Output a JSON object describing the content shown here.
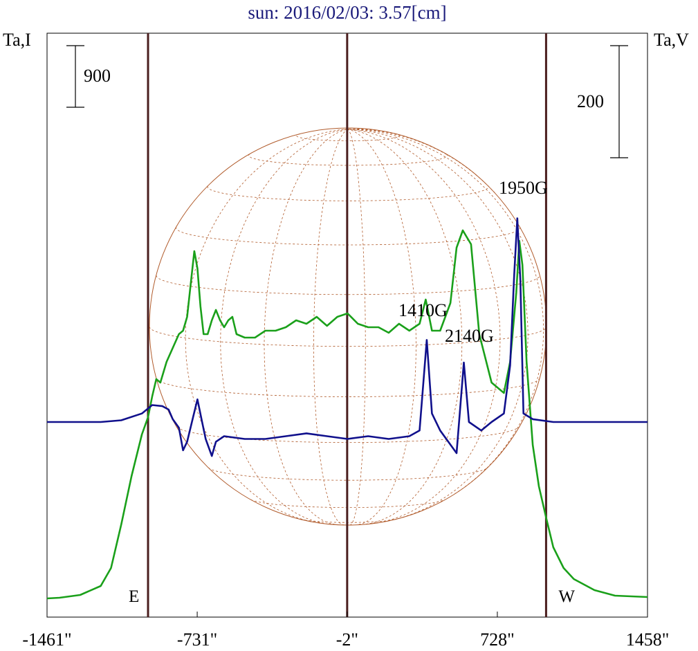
{
  "chart_data": {
    "type": "line",
    "title": "sun: 2016/02/03: 3.57[cm]",
    "left_axis_label": "Ta,I",
    "right_axis_label": "Ta,V",
    "x_unit": "arcsec",
    "x_ticks": [
      -1461,
      -731,
      -2,
      728,
      1458
    ],
    "x_tick_labels": [
      "-1461\"",
      "-731\"",
      "-2\"",
      "728\"",
      "1458\""
    ],
    "xlim": [
      -1461,
      1458
    ],
    "limb_markers": [
      {
        "label": "E",
        "x": -970
      },
      {
        "label": "",
        "x": -2
      },
      {
        "label": "W",
        "x": 965
      }
    ],
    "scale_bars": [
      {
        "axis": "I",
        "label": "900"
      },
      {
        "axis": "V",
        "label": "200"
      }
    ],
    "annotations": [
      {
        "text": "1950G",
        "x": 868
      },
      {
        "text": "1410G",
        "x": 385
      },
      {
        "text": "2140G",
        "x": 620
      }
    ],
    "grid": false,
    "solar_disk_overlay": true,
    "colors": {
      "intensity": "#1aa01a",
      "polarization": "#10108c",
      "markers": "#4a1e1e",
      "disk": "#b05a2a",
      "title": "#1a1a7a"
    },
    "series": [
      {
        "key": "I",
        "axis": "left",
        "points": [
          [
            -1461,
            80
          ],
          [
            -1400,
            90
          ],
          [
            -1300,
            130
          ],
          [
            -1200,
            260
          ],
          [
            -1150,
            520
          ],
          [
            -1100,
            1150
          ],
          [
            -1050,
            1850
          ],
          [
            -1000,
            2450
          ],
          [
            -970,
            2700
          ],
          [
            -950,
            3000
          ],
          [
            -930,
            3250
          ],
          [
            -910,
            3200
          ],
          [
            -880,
            3500
          ],
          [
            -850,
            3700
          ],
          [
            -820,
            3900
          ],
          [
            -800,
            3950
          ],
          [
            -780,
            4150
          ],
          [
            -760,
            4700
          ],
          [
            -745,
            5100
          ],
          [
            -730,
            4850
          ],
          [
            -715,
            4300
          ],
          [
            -700,
            3900
          ],
          [
            -680,
            3900
          ],
          [
            -660,
            4100
          ],
          [
            -640,
            4250
          ],
          [
            -620,
            4100
          ],
          [
            -600,
            4000
          ],
          [
            -580,
            4100
          ],
          [
            -560,
            4150
          ],
          [
            -540,
            3900
          ],
          [
            -500,
            3850
          ],
          [
            -450,
            3850
          ],
          [
            -400,
            3950
          ],
          [
            -350,
            3950
          ],
          [
            -300,
            4000
          ],
          [
            -250,
            4100
          ],
          [
            -200,
            4050
          ],
          [
            -150,
            4150
          ],
          [
            -100,
            4020
          ],
          [
            -50,
            4150
          ],
          [
            0,
            4200
          ],
          [
            50,
            4050
          ],
          [
            100,
            4000
          ],
          [
            150,
            4000
          ],
          [
            200,
            3920
          ],
          [
            250,
            4050
          ],
          [
            300,
            3950
          ],
          [
            350,
            4050
          ],
          [
            380,
            4400
          ],
          [
            410,
            3950
          ],
          [
            450,
            3950
          ],
          [
            500,
            4350
          ],
          [
            530,
            5150
          ],
          [
            560,
            5400
          ],
          [
            580,
            5300
          ],
          [
            600,
            5200
          ],
          [
            640,
            3900
          ],
          [
            700,
            3200
          ],
          [
            760,
            3050
          ],
          [
            790,
            3500
          ],
          [
            820,
            4500
          ],
          [
            835,
            5250
          ],
          [
            850,
            4900
          ],
          [
            870,
            3500
          ],
          [
            900,
            2300
          ],
          [
            930,
            1700
          ],
          [
            965,
            1250
          ],
          [
            1000,
            820
          ],
          [
            1050,
            520
          ],
          [
            1100,
            360
          ],
          [
            1200,
            200
          ],
          [
            1300,
            120
          ],
          [
            1458,
            100
          ]
        ]
      },
      {
        "key": "V",
        "axis": "right",
        "points": [
          [
            -1461,
            0
          ],
          [
            -1300,
            0
          ],
          [
            -1200,
            0
          ],
          [
            -1100,
            3
          ],
          [
            -1000,
            15
          ],
          [
            -950,
            30
          ],
          [
            -900,
            28
          ],
          [
            -870,
            22
          ],
          [
            -850,
            5
          ],
          [
            -820,
            -10
          ],
          [
            -800,
            -50
          ],
          [
            -780,
            -35
          ],
          [
            -750,
            10
          ],
          [
            -730,
            40
          ],
          [
            -710,
            5
          ],
          [
            -690,
            -30
          ],
          [
            -660,
            -60
          ],
          [
            -640,
            -35
          ],
          [
            -600,
            -25
          ],
          [
            -500,
            -30
          ],
          [
            -400,
            -30
          ],
          [
            -300,
            -25
          ],
          [
            -200,
            -20
          ],
          [
            -100,
            -25
          ],
          [
            0,
            -30
          ],
          [
            100,
            -25
          ],
          [
            200,
            -30
          ],
          [
            300,
            -25
          ],
          [
            350,
            -15
          ],
          [
            385,
            145
          ],
          [
            410,
            15
          ],
          [
            450,
            -15
          ],
          [
            530,
            -55
          ],
          [
            565,
            105
          ],
          [
            590,
            0
          ],
          [
            650,
            -15
          ],
          [
            700,
            0
          ],
          [
            760,
            15
          ],
          [
            790,
            100
          ],
          [
            810,
            260
          ],
          [
            825,
            360
          ],
          [
            840,
            250
          ],
          [
            855,
            15
          ],
          [
            900,
            5
          ],
          [
            1000,
            0
          ],
          [
            1100,
            0
          ],
          [
            1200,
            0
          ],
          [
            1300,
            0
          ],
          [
            1458,
            0
          ]
        ]
      }
    ]
  }
}
